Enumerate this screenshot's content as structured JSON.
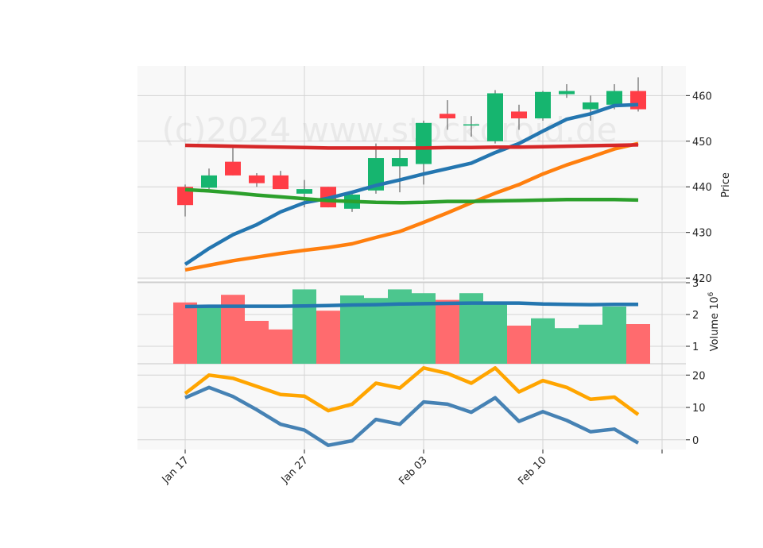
{
  "chart_data": {
    "type": "candlestick",
    "watermark": "(c)2024 www.stockdroid.de",
    "x_tick_labels": [
      "Jan 17",
      "Jan 27",
      "Feb 03",
      "Feb 10"
    ],
    "colors": {
      "up": "#16b56f",
      "down": "#ff3d46",
      "volume_up": "#4cc68e",
      "volume_down": "#ff6b6e",
      "ma_blue": "#2476b0",
      "ma_orange": "#ff7f0e",
      "ma_red": "#d62728",
      "ma_green": "#2ca02c",
      "ind_orange": "#ffa500",
      "ind_blue": "#4682b4",
      "panel_bg": "#f8f8f8",
      "grid": "#d3d3d3"
    },
    "panels": [
      {
        "id": "price",
        "ylabel": "Price",
        "ylim": [
          419.5,
          466.5
        ],
        "yticks": [
          420,
          430,
          440,
          450,
          460
        ],
        "candles": [
          {
            "o": 440.0,
            "h": 440.5,
            "l": 433.5,
            "c": 436.0
          },
          {
            "o": 439.8,
            "h": 444.0,
            "l": 439.5,
            "c": 442.5
          },
          {
            "o": 445.5,
            "h": 448.5,
            "l": 442.5,
            "c": 442.5
          },
          {
            "o": 442.5,
            "h": 443.0,
            "l": 440.0,
            "c": 440.8
          },
          {
            "o": 442.5,
            "h": 443.5,
            "l": 439.5,
            "c": 439.5
          },
          {
            "o": 438.5,
            "h": 441.5,
            "l": 435.5,
            "c": 439.5
          },
          {
            "o": 440.0,
            "h": 440.0,
            "l": 435.5,
            "c": 435.5
          },
          {
            "o": 435.2,
            "h": 438.5,
            "l": 434.5,
            "c": 438.3
          },
          {
            "o": 439.2,
            "h": 449.5,
            "l": 438.5,
            "c": 446.3
          },
          {
            "o": 444.5,
            "h": 448.5,
            "l": 438.8,
            "c": 446.3
          },
          {
            "o": 445.0,
            "h": 454.5,
            "l": 440.5,
            "c": 454.0
          },
          {
            "o": 456.0,
            "h": 459.0,
            "l": 452.5,
            "c": 455.0
          },
          {
            "o": 453.5,
            "h": 455.5,
            "l": 451.0,
            "c": 453.7
          },
          {
            "o": 450.0,
            "h": 461.2,
            "l": 449.5,
            "c": 460.5
          },
          {
            "o": 456.5,
            "h": 458.0,
            "l": 452.5,
            "c": 455.0
          },
          {
            "o": 455.0,
            "h": 461.0,
            "l": 454.5,
            "c": 460.8
          },
          {
            "o": 460.3,
            "h": 462.5,
            "l": 459.5,
            "c": 461.0
          },
          {
            "o": 457.0,
            "h": 460.0,
            "l": 454.5,
            "c": 458.5
          },
          {
            "o": 458.0,
            "h": 462.5,
            "l": 457.0,
            "c": 461.0
          },
          {
            "o": 461.0,
            "h": 464.0,
            "l": 456.5,
            "c": 457.0
          }
        ],
        "lines": [
          {
            "color_key": "ma_blue",
            "values": [
              423.0,
              426.5,
              429.5,
              431.7,
              434.5,
              436.5,
              437.5,
              438.8,
              440.3,
              441.5,
              442.8,
              444.0,
              445.2,
              447.5,
              449.5,
              452.2,
              454.8,
              456.0,
              457.8,
              458.0
            ]
          },
          {
            "color_key": "ma_orange",
            "values": [
              421.8,
              422.8,
              423.8,
              424.6,
              425.4,
              426.1,
              426.7,
              427.5,
              428.9,
              430.2,
              432.2,
              434.3,
              436.5,
              438.6,
              440.5,
              442.8,
              444.8,
              446.5,
              448.3,
              449.5
            ]
          },
          {
            "color_key": "ma_red",
            "values": [
              449.1,
              449.0,
              448.9,
              448.8,
              448.7,
              448.6,
              448.5,
              448.5,
              448.5,
              448.5,
              448.5,
              448.6,
              448.6,
              448.7,
              448.7,
              448.8,
              448.9,
              449.0,
              449.1,
              449.2
            ]
          },
          {
            "color_key": "ma_green",
            "values": [
              439.4,
              439.1,
              438.7,
              438.2,
              437.8,
              437.4,
              437.0,
              436.8,
              436.6,
              436.5,
              436.6,
              436.8,
              436.8,
              436.9,
              437.0,
              437.1,
              437.2,
              437.2,
              437.2,
              437.1
            ]
          }
        ]
      },
      {
        "id": "volume",
        "ylabel": "Volume  10^6",
        "ylabel_base": "Volume",
        "ylabel_exp": "6",
        "ylabel_mult": "10",
        "ylim": [
          0.45,
          3.0
        ],
        "yticks": [
          1,
          2,
          3
        ],
        "bars": [
          2.38,
          2.23,
          2.62,
          1.8,
          1.53,
          2.79,
          2.12,
          2.6,
          2.52,
          2.79,
          2.67,
          2.46,
          2.67,
          2.35,
          1.65,
          1.88,
          1.57,
          1.68,
          2.25,
          1.7
        ],
        "lines": [
          {
            "color_key": "ma_blue",
            "values": [
              2.25,
              2.26,
              2.26,
              2.26,
              2.26,
              2.27,
              2.28,
              2.3,
              2.31,
              2.33,
              2.34,
              2.35,
              2.36,
              2.36,
              2.36,
              2.33,
              2.32,
              2.31,
              2.32,
              2.32
            ]
          }
        ]
      },
      {
        "id": "indicator",
        "ylabel": "",
        "ylim": [
          -3.0,
          23.5
        ],
        "yticks": [
          0,
          10,
          20
        ],
        "lines": [
          {
            "color_key": "ind_orange",
            "values": [
              14.3,
              20.0,
              19.0,
              16.5,
              14.0,
              13.5,
              9.0,
              11.0,
              17.5,
              16.0,
              22.2,
              20.5,
              17.5,
              22.2,
              14.8,
              18.3,
              16.2,
              12.5,
              13.2,
              7.8
            ]
          },
          {
            "color_key": "ind_blue",
            "values": [
              13.0,
              16.2,
              13.4,
              9.3,
              4.8,
              3.0,
              -1.7,
              -0.3,
              6.3,
              4.8,
              11.7,
              11.0,
              8.5,
              13.0,
              5.7,
              8.7,
              6.0,
              2.5,
              3.3,
              -1.0
            ]
          }
        ]
      }
    ]
  }
}
